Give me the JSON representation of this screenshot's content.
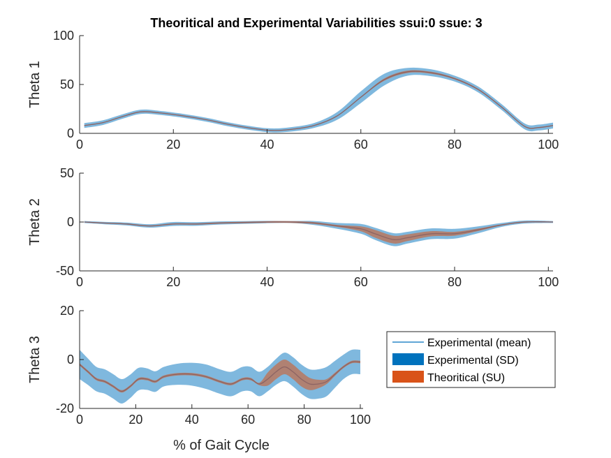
{
  "chart_data": {
    "type": "area",
    "title": "Theoritical and Experimental Variabilities ssui:0 ssue: 3",
    "xlabel": "% of Gait Cycle",
    "colors": {
      "mean_line": "#0072BD",
      "sd_fill": "#0072BD",
      "su_fill": "#D95319",
      "mean_overlay": "#8C6464"
    },
    "legend": {
      "placement": "right of bottom panel",
      "entries": [
        "Experimental (mean)",
        "Experimental (SD)",
        "Theoritical (SU)"
      ]
    },
    "panels": [
      {
        "ylabel": "Theta 1",
        "xlim": [
          0,
          101
        ],
        "ylim": [
          0,
          100
        ],
        "xticks": [
          0,
          20,
          40,
          60,
          80,
          100
        ],
        "yticks": [
          0,
          50,
          100
        ],
        "series": [
          {
            "role": "mean",
            "x": [
              1,
              5,
              9,
              13,
              17,
              22,
              27,
              32,
              37,
              41,
              45,
              50,
              55,
              60,
              65,
              70,
              75,
              80,
              85,
              90,
              95,
              98,
              101
            ],
            "y": [
              8,
              11,
              17,
              22,
              21,
              18,
              14,
              9,
              5,
              3,
              4,
              8,
              18,
              37,
              55,
              63,
              62,
              56,
              45,
              27,
              7,
              6,
              8
            ]
          },
          {
            "role": "sd_halfwidth",
            "x": [
              1,
              20,
              40,
              50,
              55,
              60,
              65,
              70,
              80,
              90,
              101
            ],
            "y": [
              2.5,
              2,
              2,
              2.5,
              4,
              6,
              6,
              4,
              3,
              3,
              3
            ]
          },
          {
            "role": "su_halfwidth",
            "x": [
              1,
              60,
              65,
              70,
              80,
              101
            ],
            "y": [
              0.4,
              0.4,
              1.2,
              1.2,
              0.8,
              0.4
            ]
          }
        ]
      },
      {
        "ylabel": "Theta 2",
        "xlim": [
          0,
          101
        ],
        "ylim": [
          -50,
          50
        ],
        "xticks": [
          0,
          20,
          40,
          60,
          80,
          100
        ],
        "yticks": [
          -50,
          0,
          50
        ],
        "series": [
          {
            "role": "mean",
            "x": [
              1,
              5,
              10,
              15,
              20,
              25,
              30,
              35,
              40,
              45,
              50,
              55,
              60,
              63,
              67,
              70,
              75,
              80,
              85,
              90,
              95,
              101
            ],
            "y": [
              0,
              -1,
              -2,
              -4,
              -2,
              -2,
              -1,
              -0.5,
              0,
              0,
              -1,
              -4,
              -7,
              -12,
              -18,
              -16,
              -12,
              -12,
              -8,
              -3,
              0,
              0
            ]
          },
          {
            "role": "sd_halfwidth",
            "x": [
              1,
              20,
              45,
              55,
              60,
              65,
              70,
              80,
              90,
              101
            ],
            "y": [
              1,
              2,
              1,
              3,
              5,
              7,
              6,
              5,
              2,
              1
            ]
          },
          {
            "role": "su_halfwidth",
            "x": [
              1,
              55,
              60,
              63,
              67,
              72,
              80,
              90,
              101
            ],
            "y": [
              0.4,
              1,
              2.5,
              4,
              4,
              3,
              2,
              0.6,
              0.4
            ]
          }
        ]
      },
      {
        "ylabel": "Theta 3",
        "xlim": [
          0,
          101
        ],
        "ylim": [
          -20,
          20
        ],
        "xticks": [
          0,
          20,
          40,
          60,
          80,
          100
        ],
        "yticks": [
          -20,
          0,
          20
        ],
        "series": [
          {
            "role": "mean",
            "x": [
              0,
              3,
              6,
              9,
              12,
              15,
              18,
              21,
              24,
              27,
              30,
              35,
              40,
              45,
              50,
              54,
              58,
              61,
              64,
              67,
              70,
              73,
              76,
              79,
              82,
              85,
              88,
              91,
              94,
              97,
              100
            ],
            "y": [
              -2,
              -5,
              -8,
              -9,
              -11,
              -13,
              -11,
              -8,
              -8,
              -9,
              -7,
              -6,
              -6,
              -7,
              -9,
              -10,
              -8,
              -8,
              -10,
              -8,
              -5,
              -3,
              -5,
              -8,
              -10,
              -10,
              -9,
              -6,
              -3,
              -1,
              -1
            ]
          },
          {
            "role": "sd_halfwidth",
            "x": [
              0,
              5,
              15,
              30,
              45,
              55,
              62,
              68,
              74,
              80,
              88,
              94,
              100
            ],
            "y": [
              6,
              5,
              5,
              4,
              5,
              5,
              5,
              5,
              6,
              6,
              6,
              5,
              5
            ]
          },
          {
            "role": "su_halfwidth",
            "x": [
              0,
              64,
              66,
              69,
              72,
              76,
              80,
              84,
              88,
              92,
              100
            ],
            "y": [
              0.5,
              0.5,
              2.5,
              3,
              3,
              3,
              3,
              2,
              1,
              0.5,
              0.5
            ]
          }
        ]
      }
    ]
  }
}
